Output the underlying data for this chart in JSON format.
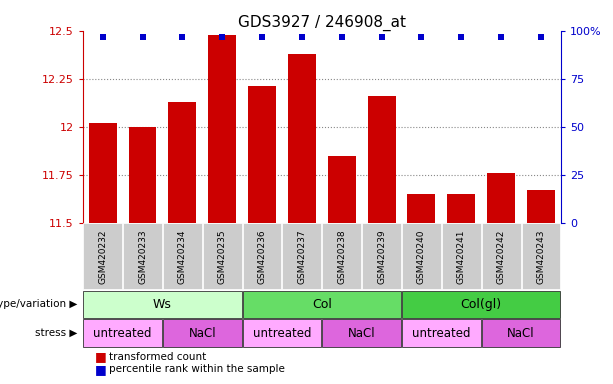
{
  "title": "GDS3927 / 246908_at",
  "samples": [
    "GSM420232",
    "GSM420233",
    "GSM420234",
    "GSM420235",
    "GSM420236",
    "GSM420237",
    "GSM420238",
    "GSM420239",
    "GSM420240",
    "GSM420241",
    "GSM420242",
    "GSM420243"
  ],
  "bar_values": [
    12.02,
    12.0,
    12.13,
    12.48,
    12.21,
    12.38,
    11.85,
    12.16,
    11.65,
    11.65,
    11.76,
    11.67
  ],
  "bar_color": "#cc0000",
  "dot_color": "#0000cc",
  "ylim_left": [
    11.5,
    12.5
  ],
  "ylim_right": [
    0,
    100
  ],
  "yticks_left": [
    11.5,
    11.75,
    12.0,
    12.25,
    12.5
  ],
  "ytick_labels_left": [
    "11.5",
    "11.75",
    "12",
    "12.25",
    "12.5"
  ],
  "yticks_right": [
    0,
    25,
    50,
    75,
    100
  ],
  "ytick_labels_right": [
    "0",
    "25",
    "50",
    "75",
    "100%"
  ],
  "left_axis_color": "#cc0000",
  "right_axis_color": "#0000cc",
  "groups": [
    {
      "label": "Ws",
      "start": 0,
      "end": 4,
      "color": "#ccffcc"
    },
    {
      "label": "Col",
      "start": 4,
      "end": 8,
      "color": "#66dd66"
    },
    {
      "label": "Col(gl)",
      "start": 8,
      "end": 12,
      "color": "#44cc44"
    }
  ],
  "stress_groups": [
    {
      "label": "untreated",
      "start": 0,
      "end": 2,
      "color": "#ffaaff"
    },
    {
      "label": "NaCl",
      "start": 2,
      "end": 4,
      "color": "#dd66dd"
    },
    {
      "label": "untreated",
      "start": 4,
      "end": 6,
      "color": "#ffaaff"
    },
    {
      "label": "NaCl",
      "start": 6,
      "end": 8,
      "color": "#dd66dd"
    },
    {
      "label": "untreated",
      "start": 8,
      "end": 10,
      "color": "#ffaaff"
    },
    {
      "label": "NaCl",
      "start": 10,
      "end": 12,
      "color": "#dd66dd"
    }
  ],
  "legend_items": [
    {
      "label": "transformed count",
      "color": "#cc0000"
    },
    {
      "label": "percentile rank within the sample",
      "color": "#0000cc"
    }
  ],
  "genotype_label": "genotype/variation",
  "stress_label": "stress",
  "grid_color": "#888888",
  "tick_bg_color": "#cccccc",
  "bar_width": 0.7
}
